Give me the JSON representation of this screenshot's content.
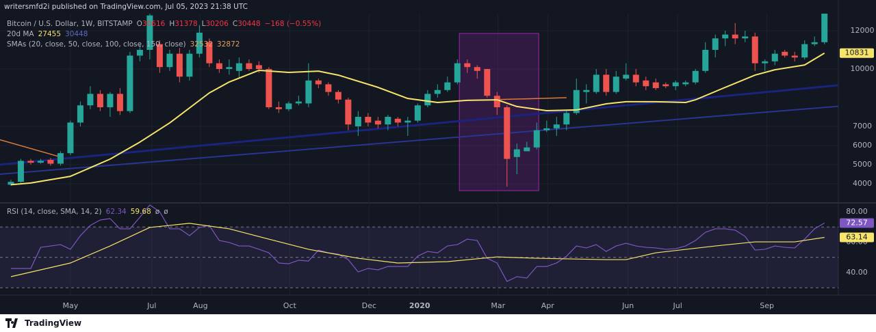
{
  "header": {
    "publisher": "writersmfd2i published on TradingView.com, Jul 05, 2023 21:38 UTC"
  },
  "chart_data": [
    {
      "type": "candlestick",
      "legend": {
        "symbol": "Bitcoin / U.S. Dollar, 1W, BITSTAMP",
        "ohlc": [
          {
            "label": "O",
            "value": 30616
          },
          {
            "label": "H",
            "value": 31378
          },
          {
            "label": "L",
            "value": 30206
          },
          {
            "label": "C",
            "value": 30448
          }
        ],
        "change": "−168 (−0.55%)",
        "ma_label": "20d MA",
        "ma_values": [
          27455,
          30448
        ],
        "sma_label": "SMAs (20, close, 50, close, 100, close, 150, close)",
        "sma_values": [
          32532,
          32872
        ]
      },
      "x": [
        0,
        1,
        2,
        3,
        4,
        5,
        6,
        7,
        8,
        9,
        10,
        11,
        12,
        13,
        14,
        15,
        16,
        17,
        18,
        19,
        20,
        21,
        22,
        23,
        24,
        25,
        26,
        27,
        28,
        29,
        30,
        31,
        32,
        33,
        34,
        35,
        36,
        37,
        38,
        39,
        40,
        41,
        42,
        43,
        44,
        45,
        46,
        47,
        48,
        49,
        50,
        51,
        52,
        53,
        54,
        55,
        56,
        57,
        58,
        59,
        60,
        61,
        62,
        63,
        64,
        65,
        66,
        67,
        68,
        69,
        70,
        71,
        72,
        73,
        74,
        75,
        76,
        77,
        78,
        79,
        80,
        81,
        82
      ],
      "open": [
        3950,
        4100,
        5200,
        5100,
        5250,
        5050,
        5600,
        7200,
        8100,
        8700,
        8000,
        8700,
        7800,
        10700,
        11000,
        11300,
        10100,
        10800,
        9600,
        10800,
        11400,
        10300,
        10000,
        9900,
        10300,
        10200,
        10000,
        8000,
        7900,
        8200,
        8200,
        9400,
        9200,
        8800,
        8400,
        7000,
        7500,
        7300,
        7100,
        7400,
        7200,
        7300,
        8100,
        8700,
        8900,
        9300,
        10300,
        10100,
        10000,
        8600,
        8000,
        5400,
        5700,
        5900,
        6800,
        6900,
        7100,
        7700,
        8800,
        8800,
        9700,
        8800,
        9500,
        9700,
        9400,
        9300,
        9200,
        9100,
        9200,
        9300,
        9900,
        11000,
        11600,
        11800,
        11600,
        11700,
        10300,
        10400,
        10900,
        10700,
        10600,
        11300,
        11400
      ],
      "high": [
        4200,
        5300,
        5300,
        5300,
        5350,
        5700,
        7300,
        8300,
        9100,
        8900,
        8800,
        9000,
        10900,
        11300,
        13200,
        11500,
        11000,
        11100,
        11000,
        12300,
        11600,
        10500,
        10500,
        10600,
        10500,
        10400,
        10100,
        8300,
        8300,
        8600,
        10300,
        9500,
        9300,
        8900,
        8500,
        7800,
        7700,
        7500,
        7600,
        7500,
        7500,
        8200,
        8900,
        9200,
        9600,
        10500,
        10500,
        10200,
        10000,
        8800,
        8100,
        6100,
        6200,
        7200,
        7300,
        7500,
        7800,
        9500,
        9200,
        10000,
        10000,
        9900,
        10300,
        10000,
        9600,
        9500,
        9300,
        9400,
        9400,
        10000,
        11400,
        11800,
        12000,
        12400,
        12000,
        11900,
        10500,
        11000,
        11000,
        10900,
        11500,
        11700,
        13200
      ],
      "low": [
        3900,
        4050,
        5000,
        5050,
        4950,
        4950,
        5500,
        7000,
        7900,
        7800,
        7500,
        7600,
        7700,
        10400,
        10500,
        9800,
        9900,
        9300,
        9400,
        10600,
        10100,
        9800,
        9700,
        9500,
        9900,
        9800,
        7900,
        7700,
        7800,
        8100,
        8000,
        9000,
        8600,
        8200,
        6800,
        6500,
        7000,
        6900,
        6800,
        7000,
        6500,
        7200,
        8000,
        8500,
        8800,
        9200,
        9800,
        9500,
        8500,
        7600,
        3850,
        4500,
        5700,
        5800,
        6700,
        6500,
        6800,
        7600,
        8200,
        8700,
        8600,
        8700,
        9400,
        9100,
        8900,
        8900,
        9000,
        8900,
        9100,
        9200,
        9800,
        10600,
        11200,
        11300,
        11400,
        9900,
        9900,
        10200,
        10600,
        10400,
        10500,
        11200,
        11300
      ],
      "close": [
        4100,
        5200,
        5100,
        5200,
        5050,
        5600,
        7200,
        8100,
        8700,
        8000,
        8700,
        7800,
        10700,
        11000,
        12800,
        10100,
        10800,
        9600,
        10800,
        11900,
        10300,
        10000,
        10100,
        10300,
        10000,
        10000,
        8000,
        7900,
        8200,
        8300,
        9400,
        9200,
        8800,
        8400,
        7100,
        7500,
        7200,
        7100,
        7500,
        7200,
        7300,
        8100,
        8700,
        8900,
        9300,
        10300,
        10100,
        9900,
        8600,
        8000,
        5300,
        5800,
        5900,
        6800,
        6900,
        7100,
        7700,
        8900,
        8900,
        9700,
        8800,
        9600,
        9700,
        9300,
        9100,
        9000,
        9100,
        9300,
        9300,
        9900,
        11000,
        11600,
        11800,
        11600,
        11700,
        10300,
        10400,
        10800,
        10700,
        10600,
        11300,
        11400,
        12900
      ],
      "up_color": "#26a69a",
      "down_color": "#ef5350",
      "lines": [
        {
          "color": "#f7e46a",
          "width": 2,
          "x": [
            0,
            2,
            6,
            10,
            13,
            16,
            20,
            22,
            25,
            28,
            31,
            33,
            37,
            40,
            43,
            46,
            49,
            51,
            54,
            57,
            60,
            62,
            65,
            68,
            69,
            72,
            75,
            77,
            80,
            82
          ],
          "values": [
            3950,
            4040,
            4390,
            5290,
            6180,
            7180,
            8750,
            9320,
            9930,
            9820,
            9890,
            9680,
            9040,
            8460,
            8250,
            8360,
            8390,
            8040,
            7820,
            7860,
            8180,
            8290,
            8290,
            8250,
            8390,
            9040,
            9680,
            9960,
            10210,
            10831
          ]
        },
        {
          "color": "#1a237e",
          "width": 3,
          "x": [
            -1.1,
            83.4
          ],
          "values": [
            5000,
            9150
          ]
        },
        {
          "color": "#283593",
          "width": 2,
          "x": [
            -1.1,
            83.4
          ],
          "values": [
            4500,
            8050
          ]
        },
        {
          "color": "#e07b39",
          "width": 1.5,
          "x": [
            -1.1,
            5,
            5,
            49,
            56
          ],
          "values": [
            6300,
            5400,
            null,
            8400,
            8500
          ]
        }
      ],
      "highlight": {
        "x": [
          45.2,
          53.2
        ],
        "y": [
          3640,
          11860
        ]
      },
      "xlim": [
        -1.1,
        83.4
      ],
      "ylim": [
        3036,
        12893
      ],
      "yticks": [
        4000,
        5000,
        6000,
        7000,
        10000,
        12000
      ],
      "xticks": [
        {
          "value": 6.0,
          "label": "May"
        },
        {
          "value": 14.2,
          "label": "Jul"
        },
        {
          "value": 19.1,
          "label": "Aug"
        },
        {
          "value": 28.1,
          "label": "Oct"
        },
        {
          "value": 36.1,
          "label": "Dec"
        },
        {
          "value": 41.2,
          "label": "2020"
        },
        {
          "value": 49.1,
          "label": "Mar"
        },
        {
          "value": 54.1,
          "label": "Apr"
        },
        {
          "value": 62.2,
          "label": "Jun"
        },
        {
          "value": 67.2,
          "label": "Jul"
        },
        {
          "value": 76.2,
          "label": "Sep"
        }
      ],
      "grid": true
    },
    {
      "type": "line",
      "title": "RSI (14, close, SMA, 14, 2)",
      "legend_values": [
        62.34,
        59.68,
        "ø",
        "ø"
      ],
      "series": [
        {
          "color": "#7e57c2",
          "values": [
            42.7,
            42.7,
            42.7,
            56.6,
            57.5,
            58.4,
            55.3,
            64.3,
            71,
            74.6,
            75.5,
            68.8,
            68.8,
            76.4,
            84.5,
            80,
            68.8,
            68.8,
            64.3,
            69.7,
            71,
            61.1,
            59.8,
            57.5,
            57.5,
            55.3,
            53,
            46.3,
            45.8,
            48.1,
            47.6,
            54.8,
            53,
            52.1,
            48.5,
            40.4,
            42.7,
            41.8,
            44,
            44,
            44,
            50.8,
            53.9,
            53,
            57.5,
            58.4,
            62,
            61.1,
            49.4,
            46.3,
            34.2,
            37.3,
            36.4,
            44,
            44,
            46.3,
            50.8,
            57.5,
            56.2,
            58.4,
            53.9,
            57.5,
            59.3,
            57.5,
            56.6,
            56.2,
            55.3,
            55.7,
            57.5,
            61.1,
            66.5,
            68.8,
            68.8,
            67.9,
            63.8,
            54.8,
            55.3,
            57.5,
            56.6,
            56.2,
            62,
            68.8,
            72.57
          ]
        },
        {
          "color": "#f7e46a",
          "x": [
            0,
            6,
            10,
            14,
            18,
            22,
            26,
            30,
            35,
            39,
            44,
            49,
            53,
            60,
            62,
            65,
            71,
            75,
            79,
            82
          ],
          "values": [
            37.3,
            46.3,
            57.5,
            69.7,
            72.4,
            68.8,
            62,
            55.3,
            49.4,
            46.3,
            47.2,
            50.3,
            49.4,
            48.5,
            48.5,
            53,
            57.5,
            60.2,
            60.2,
            63.14
          ]
        }
      ],
      "levels": [
        70,
        50,
        30
      ],
      "ylim": [
        25.17,
        85.39
      ],
      "yticks": [
        {
          "value": 80,
          "label": "80.00"
        },
        {
          "value": 60,
          "label": "60.00"
        },
        {
          "value": 40,
          "label": "40.00"
        }
      ]
    }
  ],
  "footer": {
    "brand": "TradingView"
  }
}
